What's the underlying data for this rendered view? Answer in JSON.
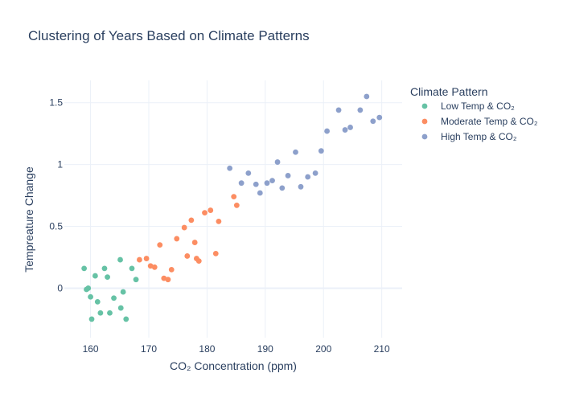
{
  "chart_data": {
    "type": "scatter",
    "title": "Clustering of Years Based on Climate Patterns",
    "xlabel": "CO₂ Concentration (ppm)",
    "ylabel": "Tempreature Change",
    "xlim": [
      155.5,
      213.5
    ],
    "ylim": [
      -0.4,
      1.68
    ],
    "x_ticks": [
      160,
      170,
      180,
      190,
      200,
      210
    ],
    "y_ticks": [
      0,
      0.5,
      1,
      1.5
    ],
    "y_tick_labels": [
      "0",
      "0.5",
      "1",
      "1.5"
    ],
    "grid": true,
    "legend": {
      "title": "Climate Pattern",
      "position": "right"
    },
    "series": [
      {
        "name": "Low Temp & CO₂",
        "color": "#66c2a5",
        "points": [
          [
            158.9,
            0.16
          ],
          [
            159.3,
            -0.01
          ],
          [
            159.6,
            0.0
          ],
          [
            160.0,
            -0.07
          ],
          [
            160.2,
            -0.25
          ],
          [
            160.8,
            0.1
          ],
          [
            161.2,
            -0.11
          ],
          [
            161.7,
            -0.2
          ],
          [
            162.4,
            0.16
          ],
          [
            162.9,
            0.09
          ],
          [
            163.3,
            -0.2
          ],
          [
            164.0,
            -0.08
          ],
          [
            165.1,
            0.23
          ],
          [
            165.2,
            -0.16
          ],
          [
            165.6,
            -0.03
          ],
          [
            166.1,
            -0.25
          ],
          [
            167.1,
            0.16
          ],
          [
            167.8,
            0.07
          ]
        ]
      },
      {
        "name": "Moderate Temp & CO₂",
        "color": "#fc8d62",
        "points": [
          [
            168.4,
            0.23
          ],
          [
            169.6,
            0.24
          ],
          [
            170.3,
            0.18
          ],
          [
            171.0,
            0.17
          ],
          [
            171.9,
            0.35
          ],
          [
            172.6,
            0.08
          ],
          [
            173.3,
            0.07
          ],
          [
            173.9,
            0.15
          ],
          [
            174.8,
            0.4
          ],
          [
            176.1,
            0.49
          ],
          [
            176.6,
            0.26
          ],
          [
            177.3,
            0.55
          ],
          [
            177.9,
            0.37
          ],
          [
            178.2,
            0.24
          ],
          [
            178.6,
            0.22
          ],
          [
            179.6,
            0.61
          ],
          [
            180.6,
            0.63
          ],
          [
            181.5,
            0.28
          ],
          [
            182.0,
            0.54
          ],
          [
            184.6,
            0.74
          ],
          [
            185.1,
            0.67
          ]
        ]
      },
      {
        "name": "High Temp & CO₂",
        "color": "#8da0cb",
        "points": [
          [
            183.9,
            0.97
          ],
          [
            185.9,
            0.85
          ],
          [
            187.1,
            0.93
          ],
          [
            188.4,
            0.84
          ],
          [
            189.1,
            0.77
          ],
          [
            190.3,
            0.85
          ],
          [
            191.2,
            0.87
          ],
          [
            192.1,
            1.02
          ],
          [
            192.9,
            0.81
          ],
          [
            193.9,
            0.91
          ],
          [
            195.2,
            1.1
          ],
          [
            196.1,
            0.82
          ],
          [
            197.3,
            0.9
          ],
          [
            198.6,
            0.93
          ],
          [
            199.6,
            1.11
          ],
          [
            200.6,
            1.27
          ],
          [
            202.6,
            1.44
          ],
          [
            203.7,
            1.28
          ],
          [
            204.6,
            1.3
          ],
          [
            206.3,
            1.44
          ],
          [
            207.4,
            1.55
          ],
          [
            208.5,
            1.35
          ],
          [
            209.6,
            1.38
          ]
        ]
      }
    ]
  }
}
